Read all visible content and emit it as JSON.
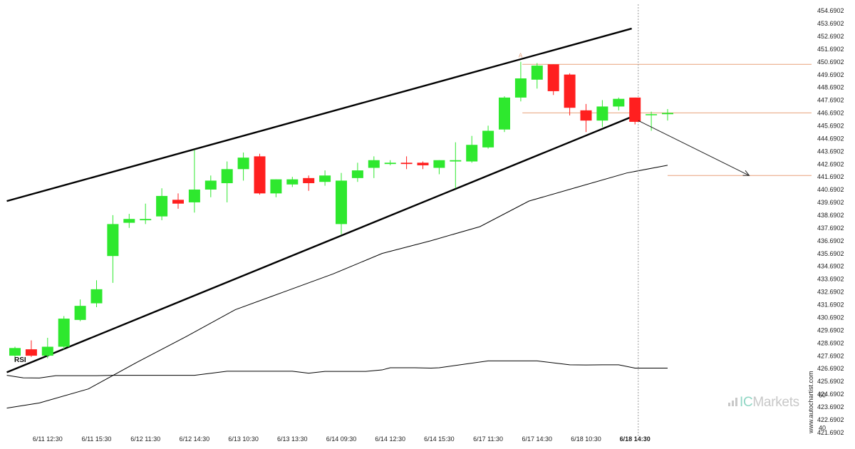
{
  "colors": {
    "bull": "#2ee82e",
    "bear": "#ff1f1f",
    "channel": "#000000",
    "level": "#e8a07a",
    "ma": "#000000",
    "rsi": "#000000",
    "grid_dashed": "#9a9a9a",
    "watermark": "#c8c8c8",
    "watermark_accent": "#8fd6c4"
  },
  "chart_data": [
    {
      "type": "candlestick",
      "title": "",
      "xlabel": "",
      "ylabel": "",
      "ylim": [
        420.9,
        455.2
      ],
      "y_axis_side": "right",
      "y_ticks": [
        "454.6902",
        "453.6902",
        "452.6902",
        "451.6902",
        "450.6902",
        "449.6902",
        "448.6902",
        "447.6902",
        "446.6902",
        "445.6902",
        "444.6902",
        "443.6902",
        "442.6902",
        "441.6902",
        "440.6902",
        "439.6902",
        "438.6902",
        "437.6902",
        "436.6902",
        "435.6902",
        "434.6902",
        "433.6902",
        "432.6902",
        "431.6902",
        "430.6902",
        "429.6902",
        "428.6902",
        "427.6902",
        "426.6902",
        "425.6902",
        "424.6902",
        "423.6902",
        "422.6902",
        "421.6902"
      ],
      "x_ticks": [
        {
          "label": "6/11 12:30",
          "index": 2
        },
        {
          "label": "6/11 15:30",
          "index": 5
        },
        {
          "label": "6/12 11:30",
          "index": 8
        },
        {
          "label": "6/12 14:30",
          "index": 11
        },
        {
          "label": "6/13 10:30",
          "index": 14
        },
        {
          "label": "6/13 13:30",
          "index": 17
        },
        {
          "label": "6/14 09:30",
          "index": 20
        },
        {
          "label": "6/14 12:30",
          "index": 23
        },
        {
          "label": "6/14 15:30",
          "index": 26
        },
        {
          "label": "6/17 11:30",
          "index": 29
        },
        {
          "label": "6/17 14:30",
          "index": 32
        },
        {
          "label": "6/18 10:30",
          "index": 35
        },
        {
          "label": "6/18 14:30",
          "index": 38,
          "bold": true
        }
      ],
      "candles": [
        {
          "o": 427.7,
          "h": 428.4,
          "l": 427.3,
          "c": 428.3
        },
        {
          "o": 428.2,
          "h": 428.9,
          "l": 427.6,
          "c": 427.7
        },
        {
          "o": 427.7,
          "h": 429.1,
          "l": 427.5,
          "c": 428.4
        },
        {
          "o": 428.4,
          "h": 430.8,
          "l": 428.2,
          "c": 430.6
        },
        {
          "o": 430.5,
          "h": 432.1,
          "l": 430.4,
          "c": 431.6
        },
        {
          "o": 431.8,
          "h": 433.6,
          "l": 431.5,
          "c": 432.9
        },
        {
          "o": 435.5,
          "h": 438.7,
          "l": 433.4,
          "c": 438.0
        },
        {
          "o": 438.1,
          "h": 438.8,
          "l": 437.7,
          "c": 438.4
        },
        {
          "o": 438.3,
          "h": 439.6,
          "l": 438.0,
          "c": 438.4
        },
        {
          "o": 438.6,
          "h": 440.8,
          "l": 438.3,
          "c": 440.2
        },
        {
          "o": 439.9,
          "h": 440.4,
          "l": 439.2,
          "c": 439.6
        },
        {
          "o": 439.7,
          "h": 443.8,
          "l": 438.9,
          "c": 440.7
        },
        {
          "o": 440.7,
          "h": 441.8,
          "l": 440.1,
          "c": 441.4
        },
        {
          "o": 441.2,
          "h": 442.9,
          "l": 439.7,
          "c": 442.3
        },
        {
          "o": 442.3,
          "h": 443.6,
          "l": 441.4,
          "c": 443.2
        },
        {
          "o": 443.3,
          "h": 443.5,
          "l": 440.3,
          "c": 440.4
        },
        {
          "o": 440.4,
          "h": 441.5,
          "l": 440.1,
          "c": 441.5
        },
        {
          "o": 441.1,
          "h": 441.7,
          "l": 440.9,
          "c": 441.5
        },
        {
          "o": 441.6,
          "h": 441.8,
          "l": 440.6,
          "c": 441.2
        },
        {
          "o": 441.3,
          "h": 442.2,
          "l": 441.0,
          "c": 441.8
        },
        {
          "o": 438.0,
          "h": 442.0,
          "l": 437.2,
          "c": 441.4
        },
        {
          "o": 441.6,
          "h": 442.8,
          "l": 441.3,
          "c": 442.2
        },
        {
          "o": 442.4,
          "h": 443.3,
          "l": 441.6,
          "c": 443.0
        },
        {
          "o": 442.7,
          "h": 443.0,
          "l": 442.6,
          "c": 442.8
        },
        {
          "o": 442.8,
          "h": 443.3,
          "l": 442.3,
          "c": 442.7
        },
        {
          "o": 442.8,
          "h": 442.9,
          "l": 442.3,
          "c": 442.6
        },
        {
          "o": 442.4,
          "h": 443.0,
          "l": 441.9,
          "c": 443.0
        },
        {
          "o": 442.9,
          "h": 444.4,
          "l": 440.8,
          "c": 443.0
        },
        {
          "o": 442.9,
          "h": 444.9,
          "l": 442.8,
          "c": 444.2
        },
        {
          "o": 444.0,
          "h": 445.7,
          "l": 443.9,
          "c": 445.3
        },
        {
          "o": 445.4,
          "h": 448.0,
          "l": 445.2,
          "c": 447.9
        },
        {
          "o": 447.9,
          "h": 450.7,
          "l": 447.6,
          "c": 449.4
        },
        {
          "o": 449.3,
          "h": 450.6,
          "l": 448.6,
          "c": 450.4
        },
        {
          "o": 450.5,
          "h": 450.5,
          "l": 448.1,
          "c": 448.4
        },
        {
          "o": 449.7,
          "h": 449.8,
          "l": 446.5,
          "c": 447.1
        },
        {
          "o": 446.9,
          "h": 447.4,
          "l": 445.2,
          "c": 446.1
        },
        {
          "o": 446.1,
          "h": 447.7,
          "l": 445.6,
          "c": 447.2
        },
        {
          "o": 447.2,
          "h": 447.9,
          "l": 446.9,
          "c": 447.8
        },
        {
          "o": 447.9,
          "h": 447.9,
          "l": 445.8,
          "c": 446.0
        },
        {
          "o": 446.6,
          "h": 446.8,
          "l": 445.3,
          "c": 446.6
        },
        {
          "o": 446.6,
          "h": 447.0,
          "l": 446.1,
          "c": 446.7
        }
      ],
      "channel": {
        "upper": [
          {
            "index": -0.5,
            "y": 439.8
          },
          {
            "index": 37.8,
            "y": 453.3
          }
        ],
        "lower": [
          {
            "index": -0.5,
            "y": 426.4
          },
          {
            "index": 38.2,
            "y": 446.6
          }
        ]
      },
      "level_lines": [
        {
          "y": 450.5,
          "from_index": 31.1
        },
        {
          "y": 446.7,
          "from_index": 31.1
        },
        {
          "y": 441.8,
          "from_index": 40.0
        }
      ],
      "projection": {
        "from": {
          "index": 38.2,
          "y": 446.1
        },
        "to": {
          "index": 45.0,
          "y": 441.8
        }
      },
      "pattern_marker": {
        "label": "A",
        "index": 31.0,
        "y": 451.0
      },
      "current_bar_index": 38.2,
      "moving_average": [
        {
          "index": -0.5,
          "y": 423.6
        },
        {
          "index": 1.5,
          "y": 424.0
        },
        {
          "index": 4.5,
          "y": 425.1
        },
        {
          "index": 7.5,
          "y": 427.2
        },
        {
          "index": 10.5,
          "y": 429.2
        },
        {
          "index": 13.5,
          "y": 431.3
        },
        {
          "index": 16.5,
          "y": 432.7
        },
        {
          "index": 19.5,
          "y": 434.1
        },
        {
          "index": 22.5,
          "y": 435.7
        },
        {
          "index": 25.5,
          "y": 436.7
        },
        {
          "index": 28.5,
          "y": 437.8
        },
        {
          "index": 31.5,
          "y": 439.8
        },
        {
          "index": 34.5,
          "y": 440.9
        },
        {
          "index": 37.5,
          "y": 442.0
        },
        {
          "index": 40.0,
          "y": 442.6
        }
      ]
    },
    {
      "type": "line",
      "title": "RSI",
      "xlabel": "",
      "ylabel": "",
      "ylim": [
        31.2,
        87
      ],
      "y_ticks": [
        60,
        40
      ],
      "values": [
        {
          "index": -0.5,
          "y": 72.0
        },
        {
          "index": 0.5,
          "y": 70.5
        },
        {
          "index": 1.5,
          "y": 70.4
        },
        {
          "index": 2.5,
          "y": 71.8
        },
        {
          "index": 5.0,
          "y": 71.8
        },
        {
          "index": 6.0,
          "y": 72.0
        },
        {
          "index": 11.0,
          "y": 72.0
        },
        {
          "index": 13.0,
          "y": 74.5
        },
        {
          "index": 17.0,
          "y": 74.5
        },
        {
          "index": 18.0,
          "y": 73.3
        },
        {
          "index": 19.0,
          "y": 74.4
        },
        {
          "index": 21.5,
          "y": 74.4
        },
        {
          "index": 22.5,
          "y": 75.3
        },
        {
          "index": 23.0,
          "y": 76.6
        },
        {
          "index": 24.5,
          "y": 76.6
        },
        {
          "index": 25.5,
          "y": 76.4
        },
        {
          "index": 26.0,
          "y": 76.6
        },
        {
          "index": 29.0,
          "y": 80.8
        },
        {
          "index": 32.0,
          "y": 80.8
        },
        {
          "index": 34.0,
          "y": 78.4
        },
        {
          "index": 35.0,
          "y": 78.3
        },
        {
          "index": 36.0,
          "y": 78.4
        },
        {
          "index": 37.0,
          "y": 78.4
        },
        {
          "index": 38.0,
          "y": 76.4
        },
        {
          "index": 40.0,
          "y": 76.4
        }
      ]
    }
  ],
  "watermark": {
    "vertical_text": "www.autochartist.com",
    "brand_prefix": "IC",
    "brand_suffix": "Markets"
  }
}
